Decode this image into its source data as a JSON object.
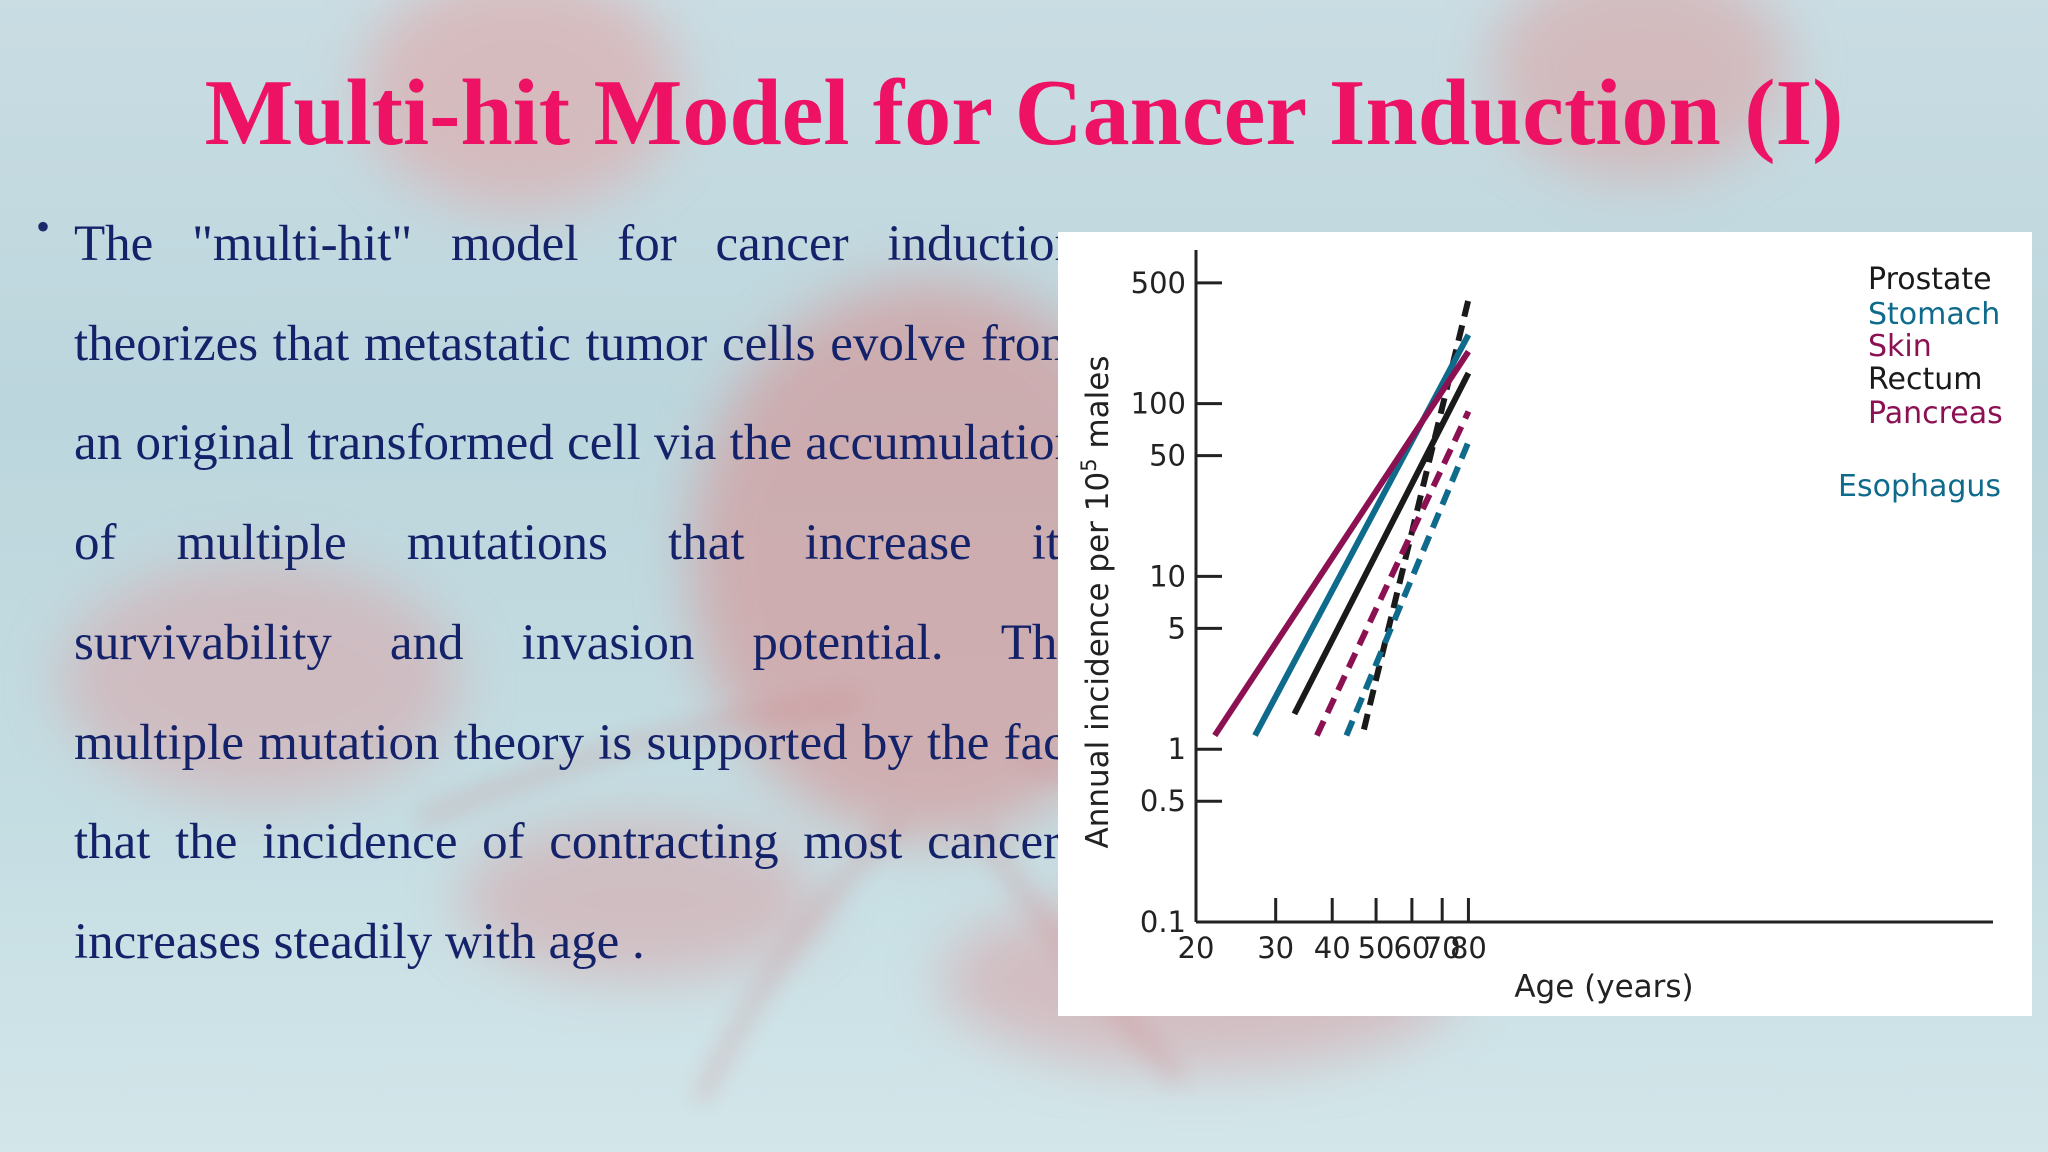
{
  "slide": {
    "title": "Multi-hit Model for Cancer Induction (I)",
    "bullet": "The \"multi-hit\" model for cancer induction theorizes that metastatic tumor cells evolve from an original transformed cell via the accumulation of multiple mutations that increase its survivability and invasion potential. The multiple mutation theory is supported by the fact that the incidence of contracting most cancers increases steadily with age .",
    "title_color": "#ee1264",
    "text_color": "#14226a"
  },
  "chart_data": {
    "type": "line",
    "title": "",
    "xlabel": "Age (years)",
    "ylabel_prefix": "Annual incidence per 10",
    "ylabel_superscript": "5",
    "ylabel_suffix": " males",
    "x_scale": "log",
    "y_scale": "log",
    "xlim": [
      20,
      105
    ],
    "ylim": [
      0.1,
      600
    ],
    "x_ticks": [
      20,
      30,
      40,
      50,
      60,
      70,
      80
    ],
    "y_ticks": [
      0.1,
      0.5,
      1,
      5,
      10,
      50,
      100,
      500
    ],
    "x_tick_labels": [
      "20",
      "30",
      "40",
      "50",
      "60",
      "70",
      "80"
    ],
    "y_tick_labels": [
      "0.1",
      "0.5",
      "1",
      "5",
      "10",
      "50",
      "100",
      "500"
    ],
    "grid": false,
    "legend_position": "top-right, labels beside line ends",
    "series": [
      {
        "name": "Prostate",
        "color": "#1a1a1a",
        "dashed": true,
        "x": [
          47,
          80
        ],
        "y": [
          1.3,
          400
        ]
      },
      {
        "name": "Stomach",
        "color": "#0f6b8c",
        "dashed": false,
        "x": [
          27,
          80
        ],
        "y": [
          1.2,
          250
        ]
      },
      {
        "name": "Skin",
        "color": "#8c1152",
        "dashed": false,
        "x": [
          22,
          80
        ],
        "y": [
          1.2,
          200
        ]
      },
      {
        "name": "Rectum",
        "color": "#1a1a1a",
        "dashed": false,
        "x": [
          33,
          80
        ],
        "y": [
          1.6,
          150
        ]
      },
      {
        "name": "Pancreas",
        "color": "#8c1152",
        "dashed": true,
        "x": [
          37,
          80
        ],
        "y": [
          1.2,
          90
        ]
      },
      {
        "name": "Esophagus",
        "color": "#0f6b8c",
        "dashed": true,
        "x": [
          43,
          80
        ],
        "y": [
          1.2,
          60
        ]
      }
    ]
  }
}
